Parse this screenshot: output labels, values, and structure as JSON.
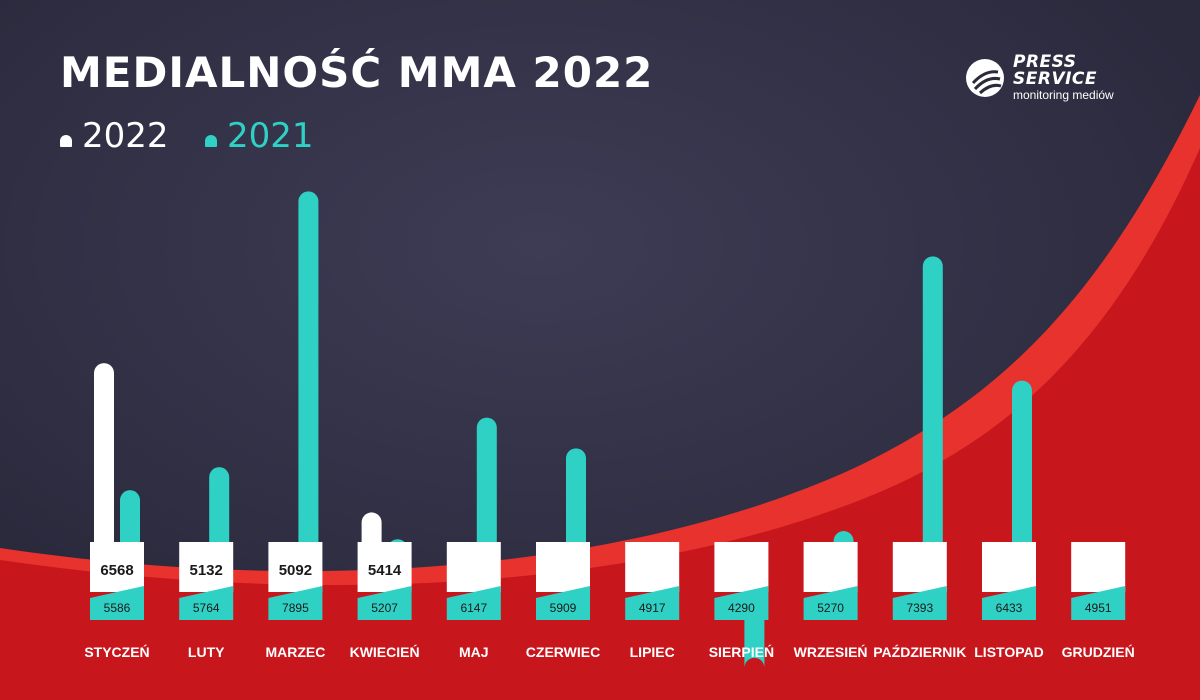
{
  "header": {
    "title": "MEDIALNOŚĆ MMA 2022"
  },
  "logo": {
    "line1": "PRESS",
    "line2": "SERVICE",
    "line3": "monitoring mediów"
  },
  "colors": {
    "background": "#2b2a3d",
    "wave_red": "#c8161d",
    "wave_red_light": "#e8322d",
    "series_2022": "#ffffff",
    "series_2021": "#2fd1c5",
    "label_text": "#1a1a1a"
  },
  "chart_data": {
    "type": "bar",
    "title": "MEDIALNOŚĆ MMA 2022",
    "categories": [
      "STYCZEŃ",
      "LUTY",
      "MARZEC",
      "KWIECIEŃ",
      "MAJ",
      "CZERWIEC",
      "LIPIEC",
      "SIERPIEŃ",
      "WRZESIEŃ",
      "PAŹDZIERNIK",
      "LISTOPAD",
      "GRUDZIEŃ"
    ],
    "series": [
      {
        "name": "2022",
        "values": [
          6568,
          5132,
          5092,
          5414,
          null,
          null,
          null,
          null,
          null,
          null,
          null,
          null
        ]
      },
      {
        "name": "2021",
        "values": [
          5586,
          5764,
          7895,
          5207,
          6147,
          5909,
          4917,
          4290,
          5270,
          7393,
          6433,
          4951
        ]
      }
    ],
    "legend_position": "top-left",
    "grid": false
  }
}
